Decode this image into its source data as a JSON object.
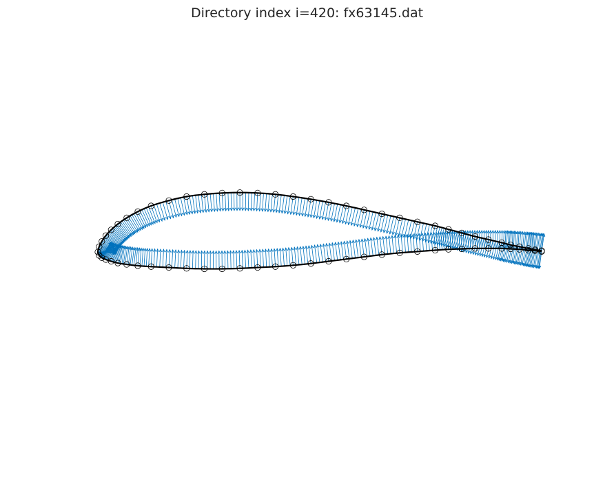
{
  "title": "Directory index i=420: fx63145.dat",
  "colors": {
    "normals": "#0072bd",
    "outline": "#000000",
    "markers": "#000000"
  },
  "chart_data": {
    "type": "scatter",
    "axes_visible": false,
    "grid": false,
    "legend": "none",
    "xlim": [
      0,
      1
    ],
    "ylim": [
      -0.44,
      0.62
    ],
    "surface_points": [
      [
        1.0,
        0.003
      ],
      [
        0.985,
        0.005
      ],
      [
        0.97,
        0.008
      ],
      [
        0.95,
        0.012
      ],
      [
        0.93,
        0.016
      ],
      [
        0.91,
        0.021
      ],
      [
        0.88,
        0.028
      ],
      [
        0.85,
        0.035
      ],
      [
        0.82,
        0.043
      ],
      [
        0.79,
        0.051
      ],
      [
        0.76,
        0.059
      ],
      [
        0.72,
        0.068
      ],
      [
        0.68,
        0.077
      ],
      [
        0.64,
        0.086
      ],
      [
        0.6,
        0.095
      ],
      [
        0.56,
        0.104
      ],
      [
        0.52,
        0.112
      ],
      [
        0.48,
        0.119
      ],
      [
        0.44,
        0.125
      ],
      [
        0.4,
        0.13
      ],
      [
        0.36,
        0.133
      ],
      [
        0.32,
        0.134
      ],
      [
        0.28,
        0.133
      ],
      [
        0.24,
        0.13
      ],
      [
        0.2,
        0.125
      ],
      [
        0.16,
        0.116
      ],
      [
        0.12,
        0.104
      ],
      [
        0.09,
        0.091
      ],
      [
        0.065,
        0.077
      ],
      [
        0.045,
        0.063
      ],
      [
        0.03,
        0.05
      ],
      [
        0.018,
        0.037
      ],
      [
        0.009,
        0.024
      ],
      [
        0.003,
        0.012
      ],
      [
        0.0,
        0.0
      ],
      [
        0.003,
        -0.008
      ],
      [
        0.009,
        -0.013
      ],
      [
        0.018,
        -0.017
      ],
      [
        0.03,
        -0.021
      ],
      [
        0.045,
        -0.025
      ],
      [
        0.065,
        -0.028
      ],
      [
        0.09,
        -0.031
      ],
      [
        0.12,
        -0.033
      ],
      [
        0.16,
        -0.035
      ],
      [
        0.2,
        -0.037
      ],
      [
        0.24,
        -0.038
      ],
      [
        0.28,
        -0.038
      ],
      [
        0.32,
        -0.037
      ],
      [
        0.36,
        -0.035
      ],
      [
        0.4,
        -0.033
      ],
      [
        0.44,
        -0.03
      ],
      [
        0.48,
        -0.026
      ],
      [
        0.52,
        -0.021
      ],
      [
        0.56,
        -0.016
      ],
      [
        0.6,
        -0.011
      ],
      [
        0.64,
        -0.006
      ],
      [
        0.68,
        -0.002
      ],
      [
        0.72,
        0.001
      ],
      [
        0.76,
        0.004
      ],
      [
        0.79,
        0.006
      ],
      [
        0.82,
        0.007
      ],
      [
        0.85,
        0.008
      ],
      [
        0.88,
        0.008
      ],
      [
        0.91,
        0.008
      ],
      [
        0.93,
        0.007
      ],
      [
        0.95,
        0.006
      ],
      [
        0.97,
        0.004
      ],
      [
        0.985,
        0.003
      ],
      [
        1.0,
        0.001
      ]
    ]
  }
}
